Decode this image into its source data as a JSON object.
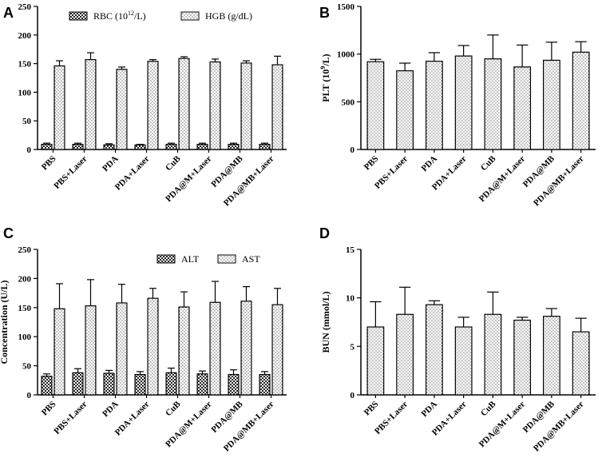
{
  "chart_data": [
    {
      "panel": "A",
      "type": "bar",
      "categories": [
        "PBS",
        "PBS+Laser",
        "PDA",
        "PDA+Laser",
        "CuB",
        "PDA@M+Laser",
        "PDA@MB",
        "PDA@MB+Laser"
      ],
      "ylabel": "",
      "ylim": [
        0,
        250
      ],
      "yticks": [
        0,
        50,
        100,
        150,
        200,
        250
      ],
      "legend_position": "top-right",
      "series": [
        {
          "name": "RBC (10",
          "name_sup": "12",
          "name_tail": "/L)",
          "pattern": "checker",
          "values": [
            9,
            9,
            8,
            8,
            9,
            9,
            9,
            9
          ],
          "errors": [
            2,
            2,
            2,
            1,
            2,
            2,
            2,
            2
          ]
        },
        {
          "name": "HGB (g/dL)",
          "pattern": "dots",
          "values": [
            146,
            157,
            140,
            154,
            159,
            153,
            151,
            148
          ],
          "errors": [
            9,
            12,
            4,
            3,
            3,
            5,
            4,
            15
          ]
        }
      ]
    },
    {
      "panel": "B",
      "type": "bar",
      "categories": [
        "PBS",
        "PBS+Laser",
        "PDA",
        "PDA+Laser",
        "CuB",
        "PDA@M+Laser",
        "PDA@MB",
        "PDA@MB+Laser"
      ],
      "ylabel": "PLT (10",
      "ylabel_sup": "9",
      "ylabel_tail": "/L)",
      "ylim": [
        0,
        1500
      ],
      "yticks": [
        0,
        500,
        1000,
        1500
      ],
      "series": [
        {
          "name": "PLT",
          "pattern": "dots",
          "values": [
            920,
            825,
            925,
            980,
            950,
            865,
            935,
            1020
          ],
          "errors": [
            25,
            80,
            90,
            110,
            250,
            230,
            190,
            110
          ]
        }
      ]
    },
    {
      "panel": "C",
      "type": "bar",
      "categories": [
        "PBS",
        "PBS+Laser",
        "PDA",
        "PDA+Laser",
        "CuB",
        "PDA@M+Laser",
        "PDA@MB",
        "PDA@MB+Laser"
      ],
      "ylabel": "Concentration (U/L)",
      "ylim": [
        0,
        250
      ],
      "yticks": [
        0,
        50,
        100,
        150,
        200,
        250
      ],
      "legend_position": "top-right",
      "series": [
        {
          "name": "ALT",
          "pattern": "checker",
          "values": [
            32,
            38,
            37,
            35,
            38,
            36,
            35,
            35
          ],
          "errors": [
            4,
            7,
            5,
            5,
            8,
            5,
            8,
            5
          ]
        },
        {
          "name": "AST",
          "pattern": "dots",
          "values": [
            148,
            153,
            158,
            166,
            151,
            159,
            161,
            155
          ],
          "errors": [
            43,
            45,
            32,
            17,
            26,
            36,
            25,
            28
          ]
        }
      ]
    },
    {
      "panel": "D",
      "type": "bar",
      "categories": [
        "PBS",
        "PBS+Laser",
        "PDA",
        "PDA+Laser",
        "CuB",
        "PDA@M+Laser",
        "PDA@MB",
        "PDA@MB+Laser"
      ],
      "ylabel": "BUN (mmol/L)",
      "ylim": [
        0,
        15
      ],
      "yticks": [
        0,
        5,
        10,
        15
      ],
      "series": [
        {
          "name": "BUN",
          "pattern": "dots",
          "values": [
            7.0,
            8.3,
            9.3,
            7.0,
            8.3,
            7.7,
            8.1,
            6.5
          ],
          "errors": [
            2.6,
            2.8,
            0.4,
            1.0,
            2.3,
            0.3,
            0.8,
            1.4
          ]
        }
      ]
    }
  ]
}
